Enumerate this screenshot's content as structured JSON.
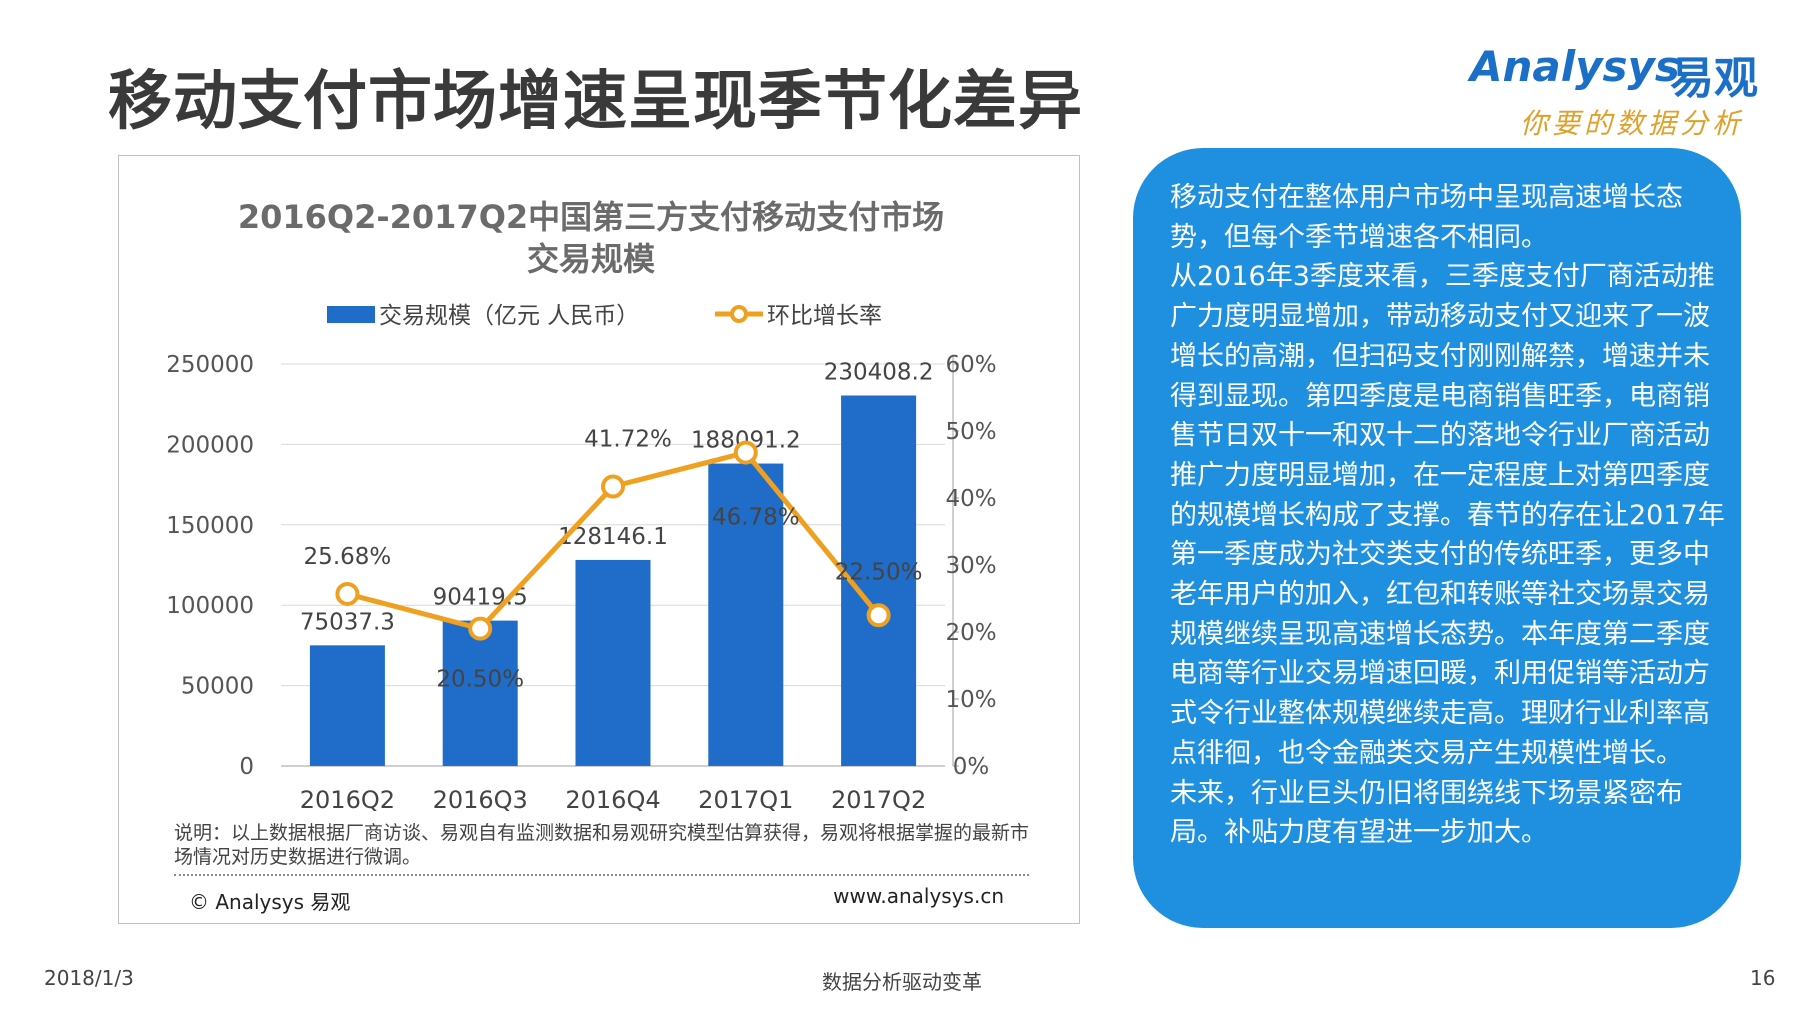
{
  "slide": {
    "title": "移动支付市场增速呈现季节化差异",
    "logo_en": "Analysys",
    "logo_cn": "易观",
    "logo_slogan": "你要的数据分析"
  },
  "chart_data": {
    "type": "bar",
    "title": "2016Q2-2017Q2中国第三方支付移动支付市场交易规模",
    "categories": [
      "2016Q2",
      "2016Q3",
      "2016Q4",
      "2017Q1",
      "2017Q2"
    ],
    "series": [
      {
        "name": "交易规模（亿元 人民币）",
        "type": "bar",
        "axis": "left",
        "values": [
          75037.3,
          90419.5,
          128146.1,
          188091.2,
          230408.2
        ],
        "labels": [
          "75037.3",
          "90419.5",
          "128146.1",
          "188091.2",
          "230408.2"
        ],
        "color": "#1f6dc8"
      },
      {
        "name": "环比增长率",
        "type": "line",
        "axis": "right",
        "values": [
          25.68,
          20.5,
          41.72,
          46.78,
          22.5
        ],
        "labels": [
          "25.68%",
          "20.50%",
          "41.72%",
          "46.78%",
          "22.50%"
        ],
        "color": "#f0a020"
      }
    ],
    "ylim": [
      0,
      250000
    ],
    "y_ticks": [
      "0",
      "50000",
      "100000",
      "150000",
      "200000",
      "250000"
    ],
    "y2lim": [
      0,
      60
    ],
    "y2_ticks": [
      "0%",
      "10%",
      "20%",
      "30%",
      "40%",
      "50%",
      "60%"
    ],
    "grid": true,
    "legend": "top"
  },
  "chart_notes": {
    "note": "说明：以上数据根据厂商访谈、易观自有监测数据和易观研究模型估算获得，易观将根据掌握的最新市场情况对历史数据进行微调。",
    "copyright": "© Analysys 易观",
    "website": "www.analysys.cn"
  },
  "panel": {
    "text": "移动支付在整体用户市场中呈现高速增长态势，但每个季节增速各不相同。\n从2016年3季度来看，三季度支付厂商活动推广力度明显增加，带动移动支付又迎来了一波增长的高潮，但扫码支付刚刚解禁，增速并未得到显现。第四季度是电商销售旺季，电商销售节日双十一和双十二的落地令行业厂商活动推广力度明显增加，在一定程度上对第四季度的规模增长构成了支撑。春节的存在让2017年第一季度成为社交类支付的传统旺季，更多中老年用户的加入，红包和转账等社交场景交易规模继续呈现高速增长态势。本年度第二季度电商等行业交易增速回暖，利用促销等活动方式令行业整体规模继续走高。理财行业利率高点徘徊，也令金融类交易产生规模性增长。\n未来，行业巨头仍旧将围绕线下场景紧密布局。补贴力度有望进一步加大。"
  },
  "footer": {
    "date": "2018/1/3",
    "center": "数据分析驱动变革",
    "page": "16"
  }
}
